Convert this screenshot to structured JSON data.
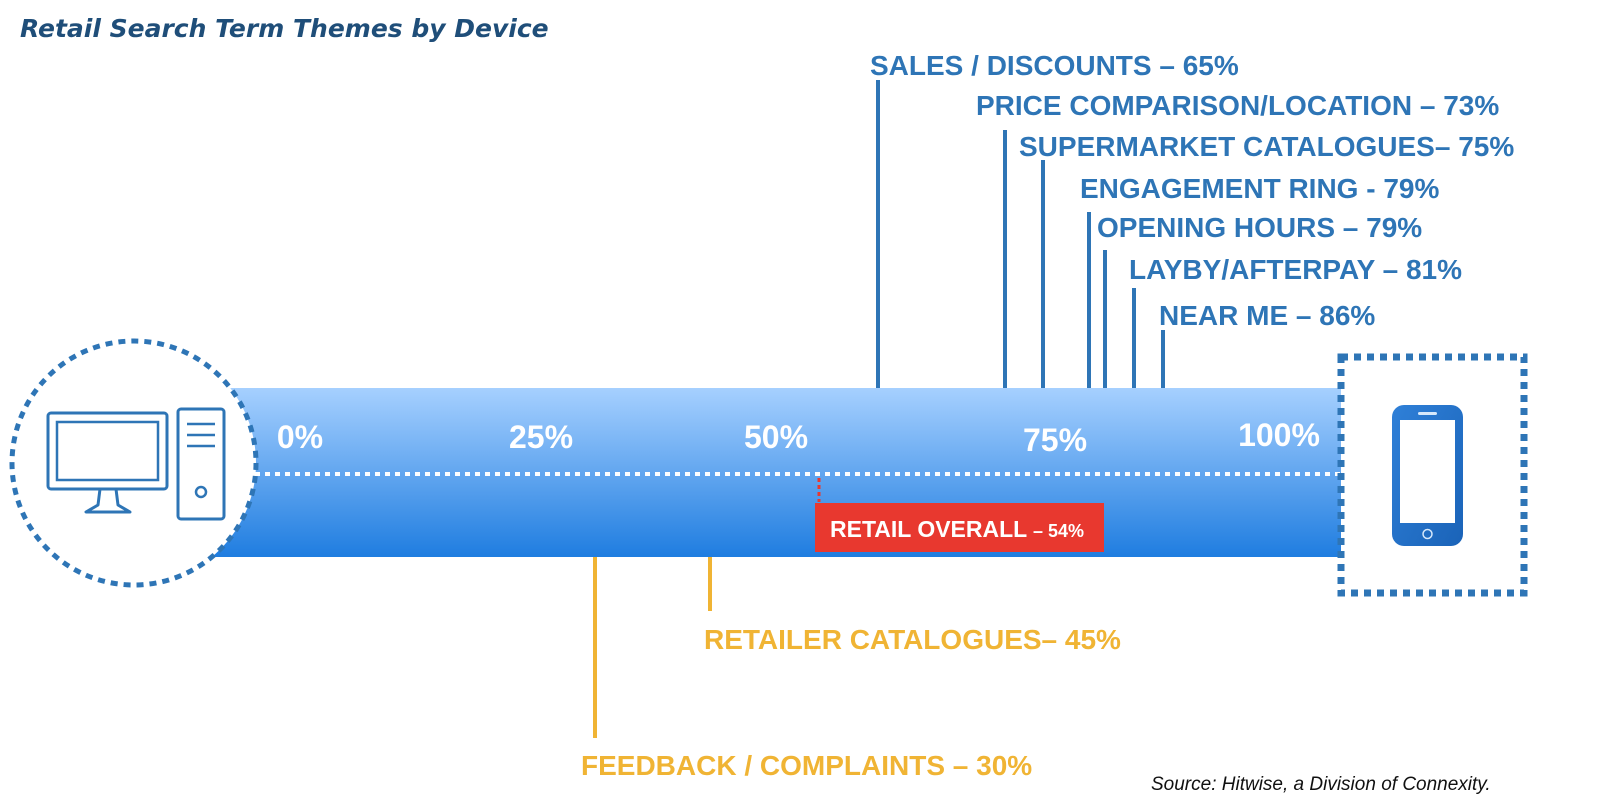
{
  "chart_data": {
    "type": "bar",
    "title": "Retail Search Term Themes by Device",
    "source": "Source: Hitwise, a Division of Connexity.",
    "axis": {
      "ticks": [
        "0%",
        "25%",
        "50%",
        "75%",
        "100%"
      ],
      "range": [
        0,
        100
      ],
      "left_end": "desktop-computer-icon",
      "right_end": "mobile-phone-icon"
    },
    "overall": {
      "label": "RETAIL OVERALL",
      "value_text": "– 54%",
      "value": 54,
      "color": "#e8382f"
    },
    "mobile_skewed": [
      {
        "label": "SALES / DISCOUNTS – 65%",
        "value": 65
      },
      {
        "label": "PRICE COMPARISON/LOCATION – 73%",
        "value": 73
      },
      {
        "label": "SUPERMARKET CATALOGUES– 75%",
        "value": 75
      },
      {
        "label": "ENGAGEMENT RING - 79%",
        "value": 79
      },
      {
        "label": "OPENING HOURS – 79%",
        "value": 79
      },
      {
        "label": "LAYBY/AFTERPAY – 81%",
        "value": 81
      },
      {
        "label": "NEAR ME – 86%",
        "value": 86
      }
    ],
    "desktop_skewed": [
      {
        "label": "RETAILER CATALOGUES– 45%",
        "value": 45
      },
      {
        "label": "FEEDBACK / COMPLAINTS – 30%",
        "value": 30
      }
    ],
    "colors": {
      "mobile_series": "#2e75b6",
      "desktop_series": "#f0b434",
      "band_top": "#9ecbff",
      "band_bottom": "#1f7de0",
      "icon": "#2e75b6",
      "title": "#1f4e79"
    }
  }
}
